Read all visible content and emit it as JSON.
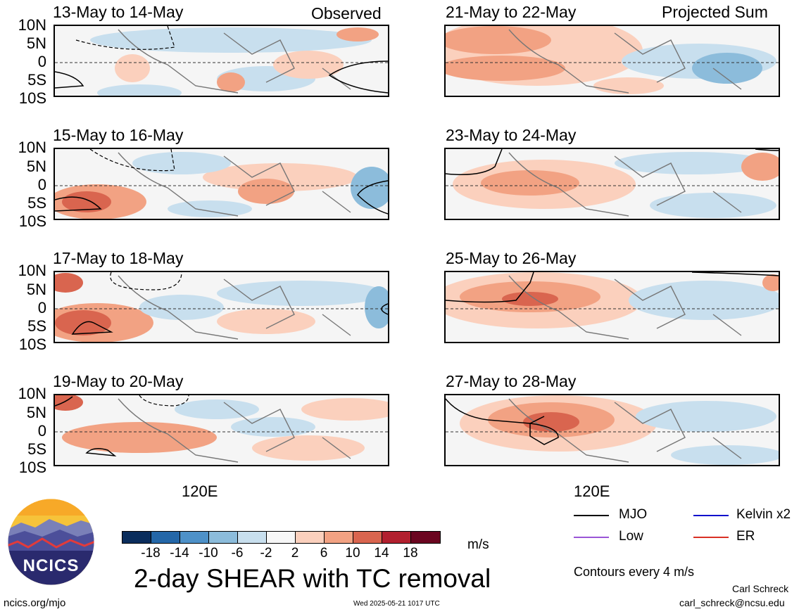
{
  "header": {
    "left_label": "Observed",
    "right_label": "Projected Sum"
  },
  "lat_labels": [
    "10N",
    "5N",
    "0",
    "5S",
    "10S"
  ],
  "lon_label": "120E",
  "panels": {
    "left": [
      {
        "title": "13-May to 14-May"
      },
      {
        "title": "15-May to 16-May"
      },
      {
        "title": "17-May to 18-May"
      },
      {
        "title": "19-May to 20-May"
      }
    ],
    "right": [
      {
        "title": "21-May to 22-May"
      },
      {
        "title": "23-May to 24-May"
      },
      {
        "title": "25-May to 26-May"
      },
      {
        "title": "27-May to 28-May"
      }
    ]
  },
  "colorbar": {
    "labels": [
      "-18",
      "-14",
      "-10",
      "-6",
      "-2",
      "2",
      "6",
      "10",
      "14",
      "18"
    ],
    "colors": [
      "#0a2d5c",
      "#2467a8",
      "#4e91c8",
      "#8cbcdb",
      "#c8dfee",
      "#f7f7f7",
      "#fbd0bd",
      "#f2a283",
      "#d9654f",
      "#b2202f",
      "#6b0520"
    ],
    "unit": "m/s"
  },
  "title": "2-day SHEAR with TC removal",
  "legend": {
    "items": [
      {
        "label": "MJO",
        "color": "#000000"
      },
      {
        "label": "Kelvin x2",
        "color": "#1010cc"
      },
      {
        "label": "Low",
        "color": "#9a55d6"
      },
      {
        "label": "ER",
        "color": "#d93025"
      }
    ],
    "contour_note": "Contours every 4 m/s"
  },
  "logo": {
    "text": "NCICS"
  },
  "footer": {
    "left": "ncics.org/mjo",
    "center": "Wed 2025-05-21 1017 UTC",
    "author": "Carl Schreck",
    "email": "carl_schreck@ncsu.edu"
  }
}
